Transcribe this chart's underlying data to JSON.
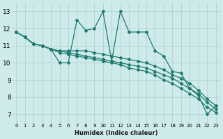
{
  "xlabel": "Humidex (Indice chaleur)",
  "bg_color": "#ceeaea",
  "grid_color": "#aacece",
  "line_color": "#1e7a70",
  "xlim": [
    -0.5,
    23.5
  ],
  "ylim": [
    6.5,
    13.5
  ],
  "xticks": [
    0,
    1,
    2,
    3,
    4,
    5,
    6,
    7,
    8,
    9,
    10,
    11,
    12,
    13,
    14,
    15,
    16,
    17,
    18,
    19,
    20,
    21,
    22,
    23
  ],
  "yticks": [
    7,
    8,
    9,
    10,
    11,
    12,
    13
  ],
  "line_jagged_y": [
    11.8,
    11.5,
    11.1,
    11.0,
    10.8,
    10.0,
    10.0,
    12.5,
    11.9,
    12.0,
    13.0,
    10.1,
    13.0,
    11.8,
    11.8,
    11.8,
    10.7,
    10.4,
    9.5,
    9.4,
    8.5,
    8.1,
    7.0,
    7.5
  ],
  "line_smooth1_y": [
    11.8,
    11.5,
    11.1,
    11.0,
    10.8,
    10.7,
    10.7,
    10.7,
    10.7,
    10.6,
    10.5,
    10.4,
    10.3,
    10.2,
    10.1,
    10.0,
    9.8,
    9.6,
    9.3,
    9.1,
    8.8,
    8.4,
    7.9,
    7.5
  ],
  "line_smooth2_y": [
    11.8,
    11.5,
    11.1,
    11.0,
    10.8,
    10.7,
    10.6,
    10.5,
    10.4,
    10.3,
    10.2,
    10.1,
    10.0,
    9.9,
    9.8,
    9.7,
    9.5,
    9.3,
    9.1,
    8.8,
    8.5,
    8.2,
    7.7,
    7.3
  ],
  "line_smooth3_y": [
    11.8,
    11.5,
    11.1,
    11.0,
    10.8,
    10.6,
    10.5,
    10.4,
    10.3,
    10.2,
    10.1,
    10.0,
    9.9,
    9.7,
    9.6,
    9.5,
    9.3,
    9.0,
    8.8,
    8.5,
    8.2,
    7.9,
    7.4,
    7.1
  ]
}
